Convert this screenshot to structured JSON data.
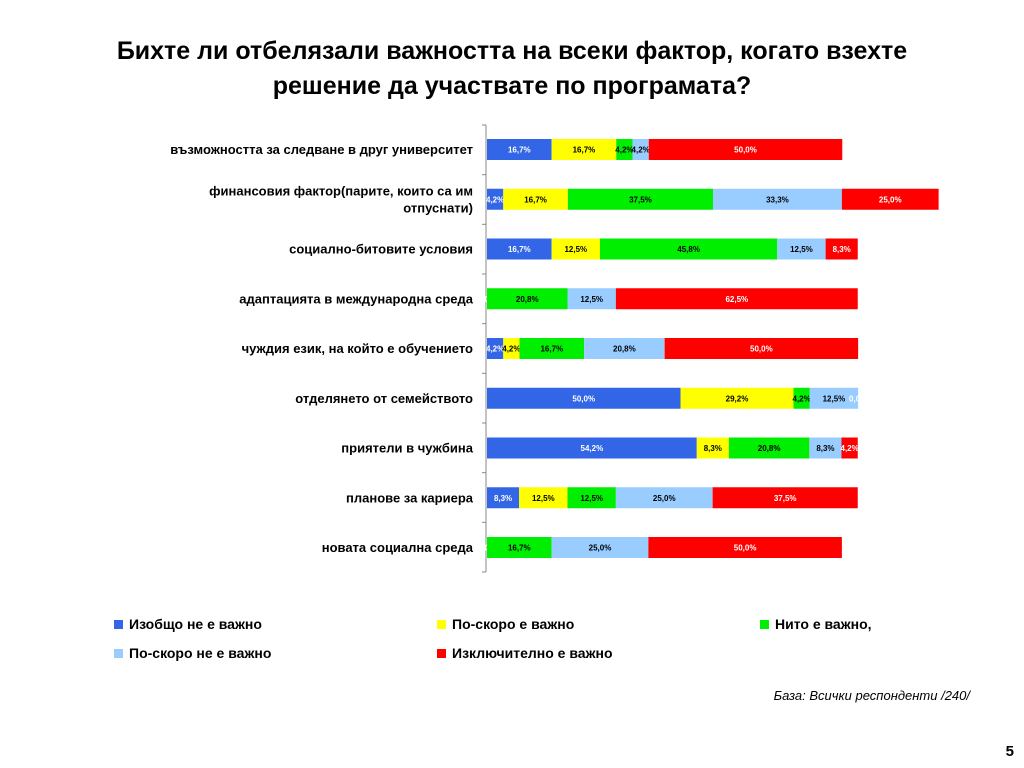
{
  "title": {
    "line1": "Бихте ли отбелязали важността на всеки фактор, когато взехте",
    "line2": "решение да участвате по програмата?"
  },
  "chart_data": {
    "type": "bar",
    "orientation": "horizontal",
    "stacked": "percent",
    "title": "",
    "xlabel": "",
    "ylabel": "",
    "xlim": [
      0,
      100
    ],
    "grid": false,
    "legend_position": "bottom",
    "categories": [
      "възможността за следване в друг университет",
      "финансовия фактор(парите, които са им отпуснати)",
      "социално-битовите условия",
      "адаптацията в международна среда",
      "чуждия език, на който е обучението",
      "отделянето от семейството",
      "приятели в чужбина",
      "планове за кариера",
      "новата социална среда"
    ],
    "category_lines": [
      [
        "възможността за следване в друг университет"
      ],
      [
        "финансовия фактор(парите, които са им",
        "отпуснати)"
      ],
      [
        "социално-битовите условия"
      ],
      [
        "адаптацията в международна среда"
      ],
      [
        "чуждия език, на който е обучението"
      ],
      [
        "отделянето от семейството"
      ],
      [
        "приятели в чужбина"
      ],
      [
        "планове за кариера"
      ],
      [
        "новата социална среда"
      ]
    ],
    "series": [
      {
        "name": "Изобщо не е важно",
        "color": "#3366e6",
        "label_color": "#ffffff",
        "values": [
          16.7,
          4.2,
          16.7,
          0.0,
          4.2,
          50.0,
          54.2,
          8.3,
          0.0
        ],
        "labels": [
          "16,7%",
          "4,2%",
          "16,7%",
          "0,0%",
          "4,2%",
          "50,0%",
          "54,2%",
          "8,3%",
          "0,0%"
        ]
      },
      {
        "name": "По-скоро е важно",
        "color": "#ffff00",
        "label_color": "#000000",
        "values": [
          16.7,
          16.7,
          12.5,
          0.0,
          4.2,
          29.2,
          8.3,
          12.5,
          0.0
        ],
        "labels": [
          "16,7%",
          "16,7%",
          "12,5%",
          "",
          "4,2%",
          "29,2%",
          "8,3%",
          "12,5%",
          ""
        ]
      },
      {
        "name": "Нито е важно,",
        "color": "#00ee00",
        "label_color": "#000000",
        "values": [
          4.2,
          37.5,
          45.8,
          20.8,
          16.7,
          4.2,
          20.8,
          12.5,
          16.7
        ],
        "labels": [
          "4,2%",
          "37,5%",
          "45,8%",
          "20,8%",
          "16,7%",
          "4,2%",
          "20,8%",
          "12,5%",
          "16,7%"
        ]
      },
      {
        "name": "По-скоро не е важно",
        "color": "#99ccff",
        "label_color": "#000000",
        "values": [
          4.2,
          33.3,
          12.5,
          12.5,
          20.8,
          12.5,
          8.3,
          25.0,
          25.0
        ],
        "labels": [
          "4,2%",
          "33,3%",
          "12,5%",
          "12,5%",
          "20,8%",
          "12,5%",
          "8,3%",
          "25,0%",
          "25,0%"
        ]
      },
      {
        "name": "Изключително е важно",
        "color": "#ff0000",
        "label_color": "#ffffff",
        "values": [
          50.0,
          25.0,
          8.3,
          62.5,
          50.0,
          0.0,
          4.2,
          37.5,
          50.0
        ],
        "labels": [
          "50,0%",
          "25,0%",
          "8,3%",
          "62,5%",
          "50,0%",
          "0,0%",
          "4,2%",
          "37,5%",
          "50,0%"
        ]
      }
    ]
  },
  "footnote": "База: Всички респонденти /240/",
  "page_number": "5"
}
